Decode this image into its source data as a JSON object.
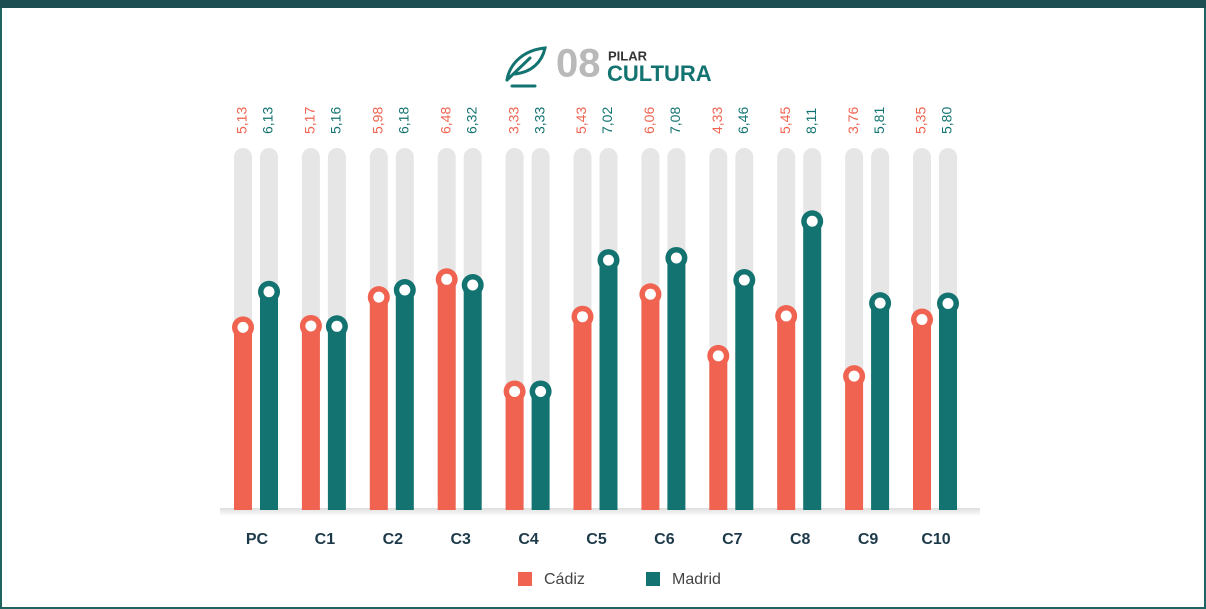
{
  "chart_data": {
    "type": "bar",
    "number": "08",
    "kicker": "PILAR",
    "title": "CULTURA",
    "categories": [
      "PC",
      "C1",
      "C2",
      "C3",
      "C4",
      "C5",
      "C6",
      "C7",
      "C8",
      "C9",
      "C10"
    ],
    "series": [
      {
        "name": "Cádiz",
        "color": "#ef6350",
        "values": [
          5.13,
          5.17,
          5.98,
          6.48,
          3.33,
          5.43,
          6.06,
          4.33,
          5.45,
          3.76,
          5.35
        ],
        "value_labels": [
          "5,13",
          "5,17",
          "5,98",
          "6,48",
          "3,33",
          "5,43",
          "6,06",
          "4,33",
          "5,45",
          "3,76",
          "5,35"
        ]
      },
      {
        "name": "Madrid",
        "color": "#137370",
        "values": [
          6.13,
          5.16,
          6.18,
          6.32,
          3.33,
          7.02,
          7.08,
          6.46,
          8.11,
          5.81,
          5.8
        ],
        "value_labels": [
          "6,13",
          "5,16",
          "6,18",
          "6,32",
          "3,33",
          "7,02",
          "7,08",
          "6,46",
          "8,11",
          "5,81",
          "5,80"
        ]
      }
    ],
    "ylim": [
      0,
      10
    ]
  }
}
